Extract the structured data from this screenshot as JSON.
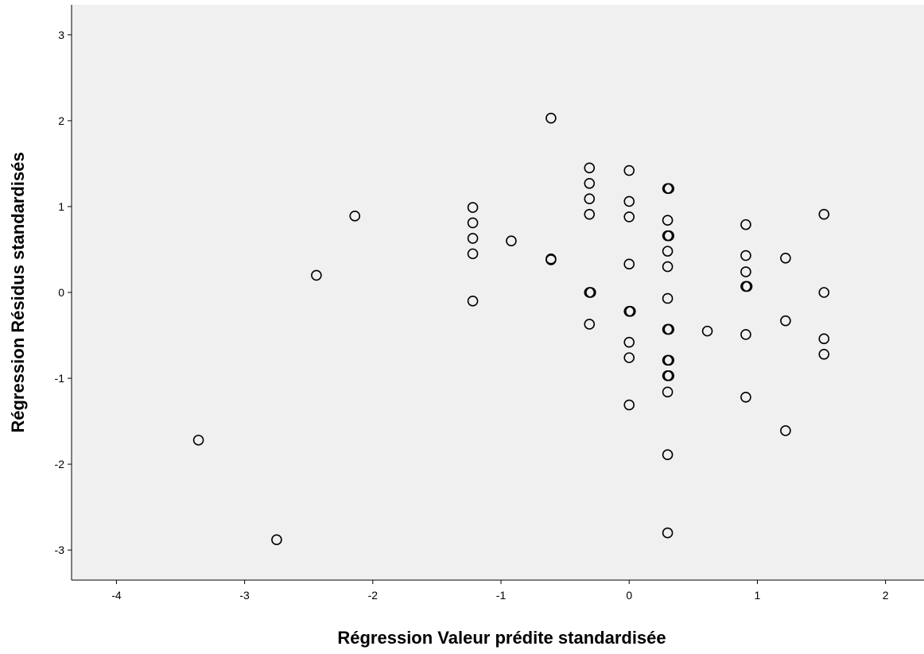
{
  "chart_data": {
    "type": "scatter",
    "title": "",
    "xlabel": "Régression Valeur prédite standardisée",
    "ylabel": "Régression Résidus standardisés",
    "xlim": [
      -4.35,
      2.3
    ],
    "ylim": [
      -3.35,
      3.35
    ],
    "xticks": [
      -4,
      -3,
      -2,
      -1,
      0,
      1,
      2
    ],
    "yticks": [
      -3,
      -2,
      -1,
      0,
      1,
      2,
      3
    ],
    "grid": false,
    "legend": "none",
    "marker": "open-circle",
    "colors": {
      "plot_background": "#f0f0f0",
      "page_background": "#ffffff",
      "marker_stroke": "#000000",
      "axis": "#000000"
    },
    "points": [
      {
        "x": -3.36,
        "y": -1.72
      },
      {
        "x": -2.75,
        "y": -2.88
      },
      {
        "x": -2.44,
        "y": 0.2
      },
      {
        "x": -2.14,
        "y": 0.89
      },
      {
        "x": -1.22,
        "y": 0.99
      },
      {
        "x": -1.22,
        "y": 0.81
      },
      {
        "x": -1.22,
        "y": 0.63
      },
      {
        "x": -1.22,
        "y": 0.45
      },
      {
        "x": -1.22,
        "y": -0.1
      },
      {
        "x": -0.92,
        "y": 0.6
      },
      {
        "x": -0.61,
        "y": 2.03
      },
      {
        "x": -0.61,
        "y": 0.39
      },
      {
        "x": -0.61,
        "y": 0.38
      },
      {
        "x": -0.31,
        "y": 1.45
      },
      {
        "x": -0.31,
        "y": 1.27
      },
      {
        "x": -0.31,
        "y": 1.09
      },
      {
        "x": -0.31,
        "y": 0.91
      },
      {
        "x": -0.31,
        "y": 0.0
      },
      {
        "x": -0.3,
        "y": 0.0
      },
      {
        "x": -0.31,
        "y": -0.37
      },
      {
        "x": 0.0,
        "y": 1.42
      },
      {
        "x": 0.0,
        "y": 1.06
      },
      {
        "x": 0.0,
        "y": 0.88
      },
      {
        "x": 0.0,
        "y": 0.33
      },
      {
        "x": 0.0,
        "y": -0.22
      },
      {
        "x": 0.01,
        "y": -0.22
      },
      {
        "x": 0.0,
        "y": -0.58
      },
      {
        "x": 0.0,
        "y": -0.76
      },
      {
        "x": 0.0,
        "y": -1.31
      },
      {
        "x": 0.3,
        "y": 1.21
      },
      {
        "x": 0.31,
        "y": 1.21
      },
      {
        "x": 0.3,
        "y": 0.84
      },
      {
        "x": 0.3,
        "y": 0.66
      },
      {
        "x": 0.31,
        "y": 0.66
      },
      {
        "x": 0.3,
        "y": 0.48
      },
      {
        "x": 0.3,
        "y": 0.3
      },
      {
        "x": 0.3,
        "y": -0.07
      },
      {
        "x": 0.3,
        "y": -0.43
      },
      {
        "x": 0.31,
        "y": -0.43
      },
      {
        "x": 0.3,
        "y": -0.79
      },
      {
        "x": 0.31,
        "y": -0.79
      },
      {
        "x": 0.3,
        "y": -0.97
      },
      {
        "x": 0.31,
        "y": -0.97
      },
      {
        "x": 0.3,
        "y": -1.16
      },
      {
        "x": 0.3,
        "y": -1.89
      },
      {
        "x": 0.3,
        "y": -2.8
      },
      {
        "x": 0.61,
        "y": -0.45
      },
      {
        "x": 0.91,
        "y": 0.79
      },
      {
        "x": 0.91,
        "y": 0.43
      },
      {
        "x": 0.91,
        "y": 0.24
      },
      {
        "x": 0.91,
        "y": 0.07
      },
      {
        "x": 0.92,
        "y": 0.07
      },
      {
        "x": 0.91,
        "y": -0.49
      },
      {
        "x": 0.91,
        "y": -1.22
      },
      {
        "x": 1.22,
        "y": 0.4
      },
      {
        "x": 1.22,
        "y": -0.33
      },
      {
        "x": 1.22,
        "y": -1.61
      },
      {
        "x": 1.52,
        "y": 0.91
      },
      {
        "x": 1.52,
        "y": 0.0
      },
      {
        "x": 1.52,
        "y": -0.54
      },
      {
        "x": 1.52,
        "y": -0.72
      }
    ]
  }
}
